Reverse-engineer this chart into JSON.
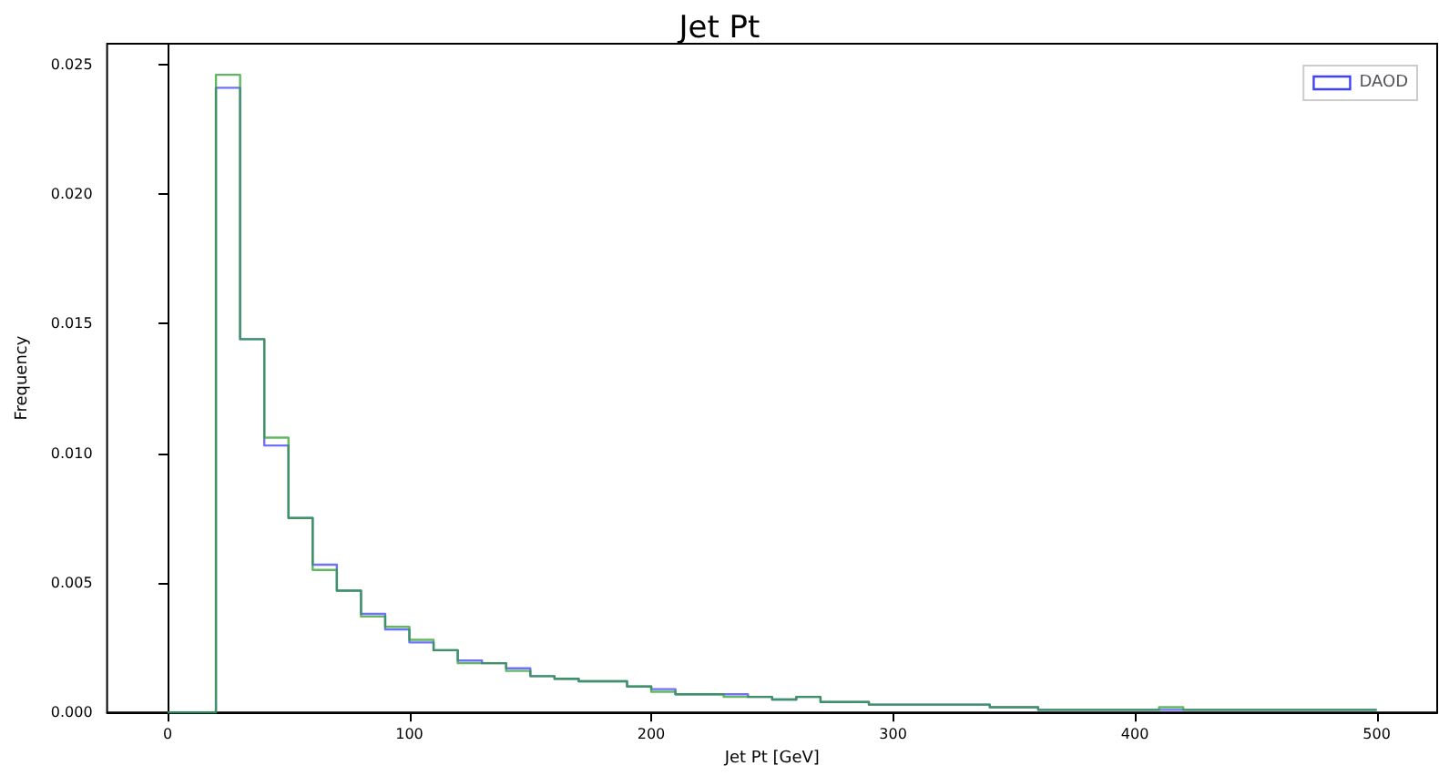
{
  "chart_data": {
    "type": "histogram",
    "title": "Jet Pt",
    "xlabel": "Jet Pt [GeV]",
    "ylabel": "Frequency",
    "bins": [
      0,
      10,
      20,
      30,
      40,
      50,
      60,
      70,
      80,
      90,
      100,
      110,
      120,
      130,
      140,
      150,
      160,
      170,
      180,
      190,
      200,
      210,
      220,
      230,
      240,
      250,
      260,
      270,
      280,
      290,
      300,
      310,
      320,
      330,
      340,
      350,
      360,
      370,
      380,
      390,
      400,
      410,
      420,
      430,
      440,
      450,
      460,
      470,
      480,
      490,
      500
    ],
    "series": [
      {
        "name": "DAOD",
        "color": "#4040ff",
        "values": [
          0,
          0,
          0.0241,
          0.0144,
          0.0103,
          0.0075,
          0.0057,
          0.0047,
          0.0038,
          0.0032,
          0.0027,
          0.0024,
          0.002,
          0.0019,
          0.0017,
          0.0014,
          0.0013,
          0.0012,
          0.0012,
          0.001,
          0.0009,
          0.0007,
          0.0007,
          0.0007,
          0.0006,
          0.0005,
          0.0006,
          0.0004,
          0.0004,
          0.0003,
          0.0003,
          0.0003,
          0.0003,
          0.0003,
          0.0002,
          0.0002,
          0.0001,
          0.0001,
          0.0001,
          0.0001,
          0.0001,
          0.0001,
          0.0001,
          0.0001,
          0.0001,
          0.0001,
          0.0001,
          0.0001,
          0.0001,
          0.0001
        ]
      },
      {
        "color": "#2ca02c",
        "values": [
          0,
          0,
          0.0246,
          0.0144,
          0.0106,
          0.0075,
          0.0055,
          0.0047,
          0.0037,
          0.0033,
          0.0028,
          0.0024,
          0.0019,
          0.0019,
          0.0016,
          0.0014,
          0.0013,
          0.0012,
          0.0012,
          0.001,
          0.0008,
          0.0007,
          0.0007,
          0.0006,
          0.0006,
          0.0005,
          0.0006,
          0.0004,
          0.0004,
          0.0003,
          0.0003,
          0.0003,
          0.0003,
          0.0003,
          0.0002,
          0.0002,
          0.0001,
          0.0001,
          0.0001,
          0.0001,
          0.0001,
          0.0002,
          0.0001,
          0.0001,
          0.0001,
          0.0001,
          0.0001,
          0.0001,
          0.0001,
          0.0001
        ]
      }
    ],
    "xlim": [
      -25,
      525
    ],
    "xticks": [
      0,
      100,
      200,
      300,
      400,
      500
    ],
    "ylim": [
      0,
      0.0258
    ],
    "yticks": [
      {
        "value": 0,
        "label": "0.000"
      },
      0.005,
      {
        "value": 0.01,
        "label": "0.010"
      },
      0.015,
      {
        "value": 0.02,
        "label": "0.020"
      },
      0.025
    ],
    "legend": "top right"
  }
}
